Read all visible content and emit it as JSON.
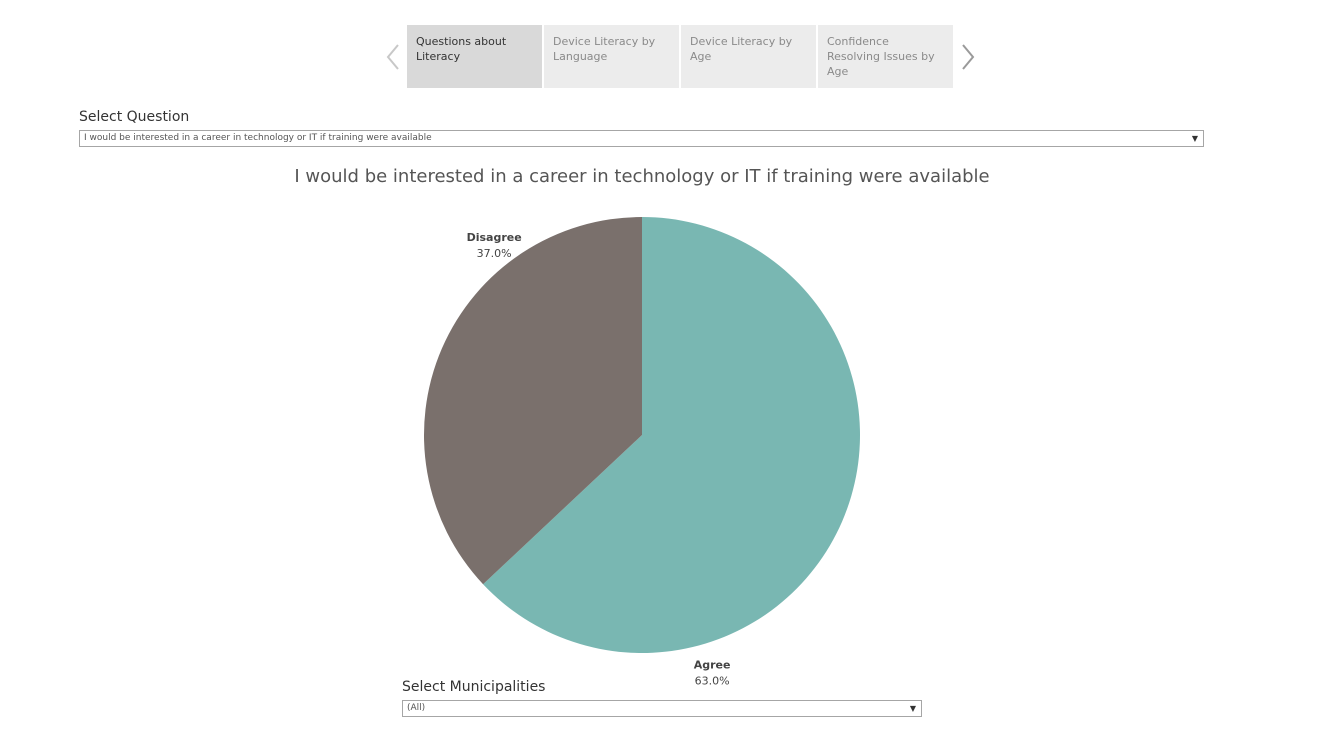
{
  "story": {
    "tabs": [
      {
        "label": "Questions about Literacy",
        "active": true
      },
      {
        "label": "Device Literacy by Language",
        "active": false
      },
      {
        "label": "Device Literacy by Age",
        "active": false
      },
      {
        "label": "Confidence Resolving Issues by Age",
        "active": false
      }
    ]
  },
  "question_filter": {
    "label": "Select Question",
    "value": "I would be interested in a career in technology or IT if training were available"
  },
  "municipality_filter": {
    "label": "Select Municipalities",
    "value": "(All)"
  },
  "chart_data": {
    "type": "pie",
    "title": "I would be interested in a career in technology or IT if training were available",
    "slices": [
      {
        "label": "Agree",
        "value": 63.0,
        "value_label": "63.0%",
        "color": "#79b7b2"
      },
      {
        "label": "Disagree",
        "value": 37.0,
        "value_label": "37.0%",
        "color": "#7a706c"
      }
    ],
    "start": "top",
    "direction": "clockwise"
  }
}
